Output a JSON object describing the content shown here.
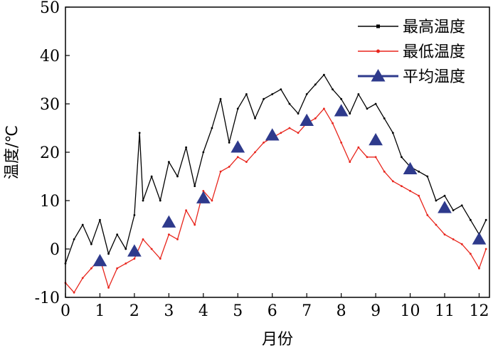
{
  "chart_data": {
    "type": "line",
    "xlabel": "月份",
    "ylabel": "温度/℃",
    "xlim": [
      0,
      12.3
    ],
    "ylim": [
      -10,
      50
    ],
    "xticks": [
      "0",
      "1",
      "2",
      "3",
      "4",
      "5",
      "6",
      "7",
      "8",
      "9",
      "10",
      "11",
      "12"
    ],
    "yticks": [
      "-10",
      "0",
      "10",
      "20",
      "30",
      "40",
      "50"
    ],
    "grid": false,
    "legend_position": "top-right",
    "series": [
      {
        "name": "最高温度",
        "color": "#000000",
        "marker": "square-small",
        "x": [
          0,
          0.25,
          0.5,
          0.75,
          1,
          1.25,
          1.5,
          1.75,
          2,
          2.15,
          2.25,
          2.5,
          2.75,
          3,
          3.25,
          3.5,
          3.75,
          4,
          4.25,
          4.5,
          4.75,
          5,
          5.25,
          5.5,
          5.75,
          6,
          6.25,
          6.5,
          6.75,
          7,
          7.25,
          7.5,
          7.75,
          8,
          8.25,
          8.5,
          8.75,
          9,
          9.25,
          9.5,
          9.75,
          10,
          10.25,
          10.5,
          10.75,
          11,
          11.25,
          11.5,
          11.75,
          12,
          12.2
        ],
        "values": [
          -3,
          2,
          5,
          1,
          6,
          -1,
          3,
          0,
          7,
          24,
          10,
          15,
          10,
          18,
          15,
          21,
          13,
          20,
          25,
          31,
          22,
          29,
          32,
          27,
          31,
          32,
          33,
          30,
          28,
          32,
          34,
          36,
          33,
          31,
          28,
          32,
          29,
          30,
          27,
          24,
          19,
          17,
          16,
          15,
          10,
          11,
          8,
          9,
          6,
          3,
          6
        ]
      },
      {
        "name": "最低温度",
        "color": "#e8251c",
        "marker": "dot-small",
        "x": [
          0,
          0.25,
          0.5,
          0.75,
          1,
          1.25,
          1.5,
          1.75,
          2,
          2.25,
          2.5,
          2.75,
          3,
          3.25,
          3.5,
          3.75,
          4,
          4.25,
          4.5,
          4.75,
          5,
          5.25,
          5.5,
          5.75,
          6,
          6.25,
          6.5,
          6.75,
          7,
          7.25,
          7.5,
          7.75,
          8,
          8.25,
          8.5,
          8.75,
          9,
          9.25,
          9.5,
          9.75,
          10,
          10.25,
          10.5,
          10.75,
          11,
          11.25,
          11.5,
          11.75,
          12,
          12.2
        ],
        "values": [
          -7,
          -9,
          -6,
          -4,
          -2,
          -8,
          -4,
          -3,
          -2,
          2,
          0,
          -2,
          3,
          2,
          8,
          5,
          12,
          10,
          16,
          17,
          19,
          18,
          20,
          22,
          23,
          24,
          25,
          24,
          26,
          27,
          29,
          26,
          22,
          18,
          21,
          19,
          19,
          16,
          14,
          13,
          12,
          11,
          7,
          5,
          3,
          2,
          1,
          -1,
          -4,
          0
        ]
      },
      {
        "name": "平均温度",
        "color": "#2e3a8c",
        "marker": "triangle",
        "x": [
          1,
          2,
          3,
          4,
          5,
          6,
          7,
          8,
          9,
          10,
          11,
          12
        ],
        "values": [
          -2.5,
          -0.5,
          5.5,
          10.5,
          21,
          23.5,
          26.5,
          28.5,
          22.5,
          16.5,
          8.5,
          2
        ]
      }
    ]
  }
}
